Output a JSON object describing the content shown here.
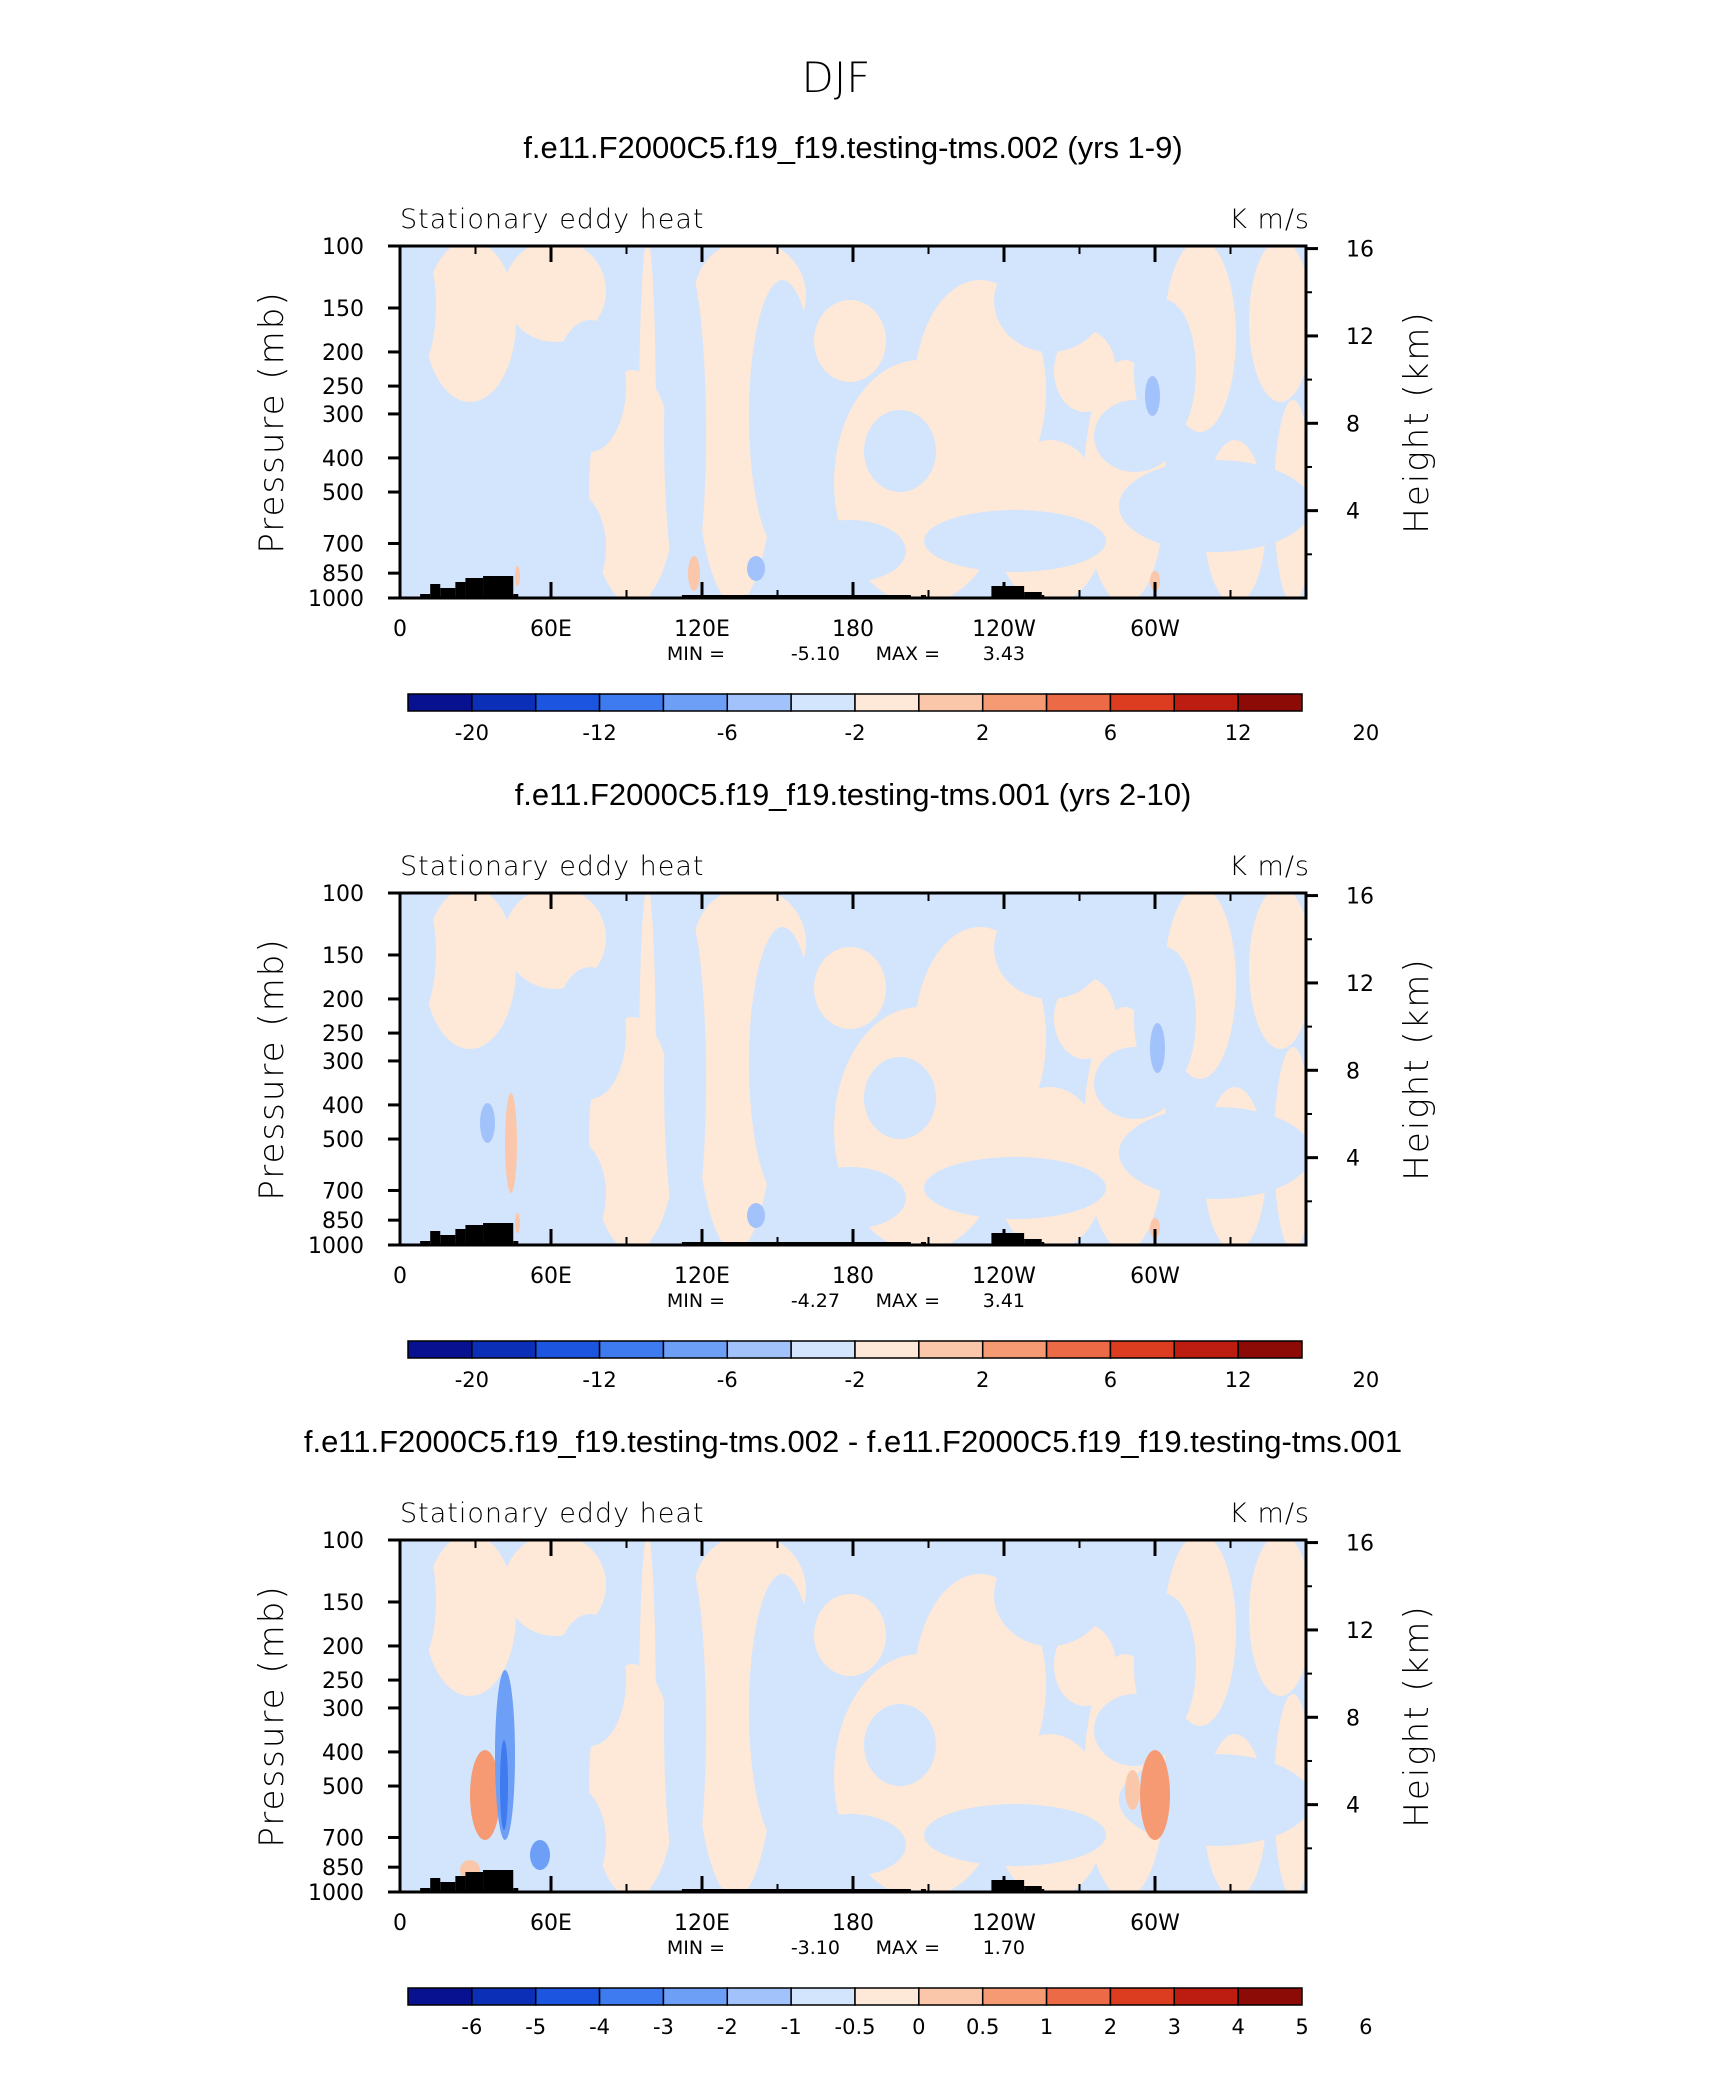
{
  "title": "DJF",
  "palette": [
    "#08118f",
    "#0c2fb8",
    "#1c56e0",
    "#3f7bf0",
    "#6e9ff6",
    "#a2c2fb",
    "#d2e5fd",
    "#fee8d8",
    "#fbc7aa",
    "#f59a73",
    "#ec6a45",
    "#dc3c1f",
    "#bc1d10",
    "#8c0b06"
  ],
  "panels": [
    {
      "case_title": "f.e11.F2000C5.f19_f19.testing-tms.002 (yrs 1-9)",
      "left_label": "Stationary eddy heat",
      "right_label": "K m/s",
      "ylabel": "Pressure (mb)",
      "ylabel_right": "Height (km)",
      "min_label": "MIN =",
      "min_value": "-5.10",
      "max_label": "MAX =",
      "max_value": "3.43",
      "colorbar_labels": [
        "-20",
        "-12",
        "-6",
        "-2",
        "2",
        "6",
        "12",
        "20"
      ],
      "colorbar_values": [
        -20,
        -12,
        -6,
        -2,
        2,
        6,
        12,
        20
      ],
      "colorbar_positions": [
        1,
        3,
        5,
        7,
        9,
        11,
        13,
        15
      ]
    },
    {
      "case_title": "f.e11.F2000C5.f19_f19.testing-tms.001 (yrs 2-10)",
      "left_label": "Stationary eddy heat",
      "right_label": "K m/s",
      "ylabel": "Pressure (mb)",
      "ylabel_right": "Height (km)",
      "min_label": "MIN =",
      "min_value": "-4.27",
      "max_label": "MAX =",
      "max_value": "3.41",
      "colorbar_labels": [
        "-20",
        "-12",
        "-6",
        "-2",
        "2",
        "6",
        "12",
        "20"
      ],
      "colorbar_values": [
        -20,
        -12,
        -6,
        -2,
        2,
        6,
        12,
        20
      ],
      "colorbar_positions": [
        1,
        3,
        5,
        7,
        9,
        11,
        13,
        15
      ]
    },
    {
      "case_title": "f.e11.F2000C5.f19_f19.testing-tms.002 - f.e11.F2000C5.f19_f19.testing-tms.001",
      "left_label": "Stationary eddy heat",
      "right_label": "K m/s",
      "ylabel": "Pressure (mb)",
      "ylabel_right": "Height (km)",
      "min_label": "MIN =",
      "min_value": "-3.10",
      "max_label": "MAX =",
      "max_value": "1.70",
      "colorbar_labels": [
        "-6",
        "-5",
        "-4",
        "-3",
        "-2",
        "-1",
        "-0.5",
        "0",
        "0.5",
        "1",
        "2",
        "3",
        "4",
        "5",
        "6"
      ],
      "colorbar_values": [
        -6,
        -5,
        -4,
        -3,
        -2,
        -1,
        -0.5,
        0,
        0.5,
        1,
        2,
        3,
        4,
        5,
        6
      ],
      "colorbar_positions": [
        1,
        2,
        3,
        4,
        5,
        6,
        7,
        8,
        9,
        10,
        11,
        12,
        13,
        14,
        15
      ]
    }
  ],
  "chart_data": [
    {
      "type": "heatmap",
      "title": "f.e11.F2000C5.f19_f19.testing-tms.002 (yrs 1-9)",
      "variable": "Stationary eddy heat",
      "units": "K m/s",
      "xlabel": "",
      "ylabel": "Pressure (mb)",
      "ylabel_right": "Height (km)",
      "x_ticks": [
        "0",
        "60E",
        "120E",
        "180",
        "120W",
        "60W"
      ],
      "x_tick_values": [
        0,
        60,
        120,
        180,
        240,
        300
      ],
      "xlim": [
        0,
        360
      ],
      "y_ticks": [
        "100",
        "150",
        "200",
        "250",
        "300",
        "400",
        "500",
        "700",
        "850",
        "1000"
      ],
      "y_tick_values": [
        100,
        150,
        200,
        250,
        300,
        400,
        500,
        700,
        850,
        1000
      ],
      "ylim": [
        1000,
        100
      ],
      "y_scale": "log",
      "y_right_ticks": [
        "16",
        "12",
        "8",
        "4"
      ],
      "y_right_tick_values": [
        16,
        12,
        8,
        4
      ],
      "min": -5.1,
      "max": 3.43,
      "contour_levels": [
        -20,
        -16,
        -12,
        -8,
        -6,
        -4,
        -2,
        0,
        2,
        4,
        6,
        8,
        12,
        16,
        20
      ]
    },
    {
      "type": "heatmap",
      "title": "f.e11.F2000C5.f19_f19.testing-tms.001 (yrs 2-10)",
      "variable": "Stationary eddy heat",
      "units": "K m/s",
      "xlabel": "",
      "ylabel": "Pressure (mb)",
      "ylabel_right": "Height (km)",
      "x_ticks": [
        "0",
        "60E",
        "120E",
        "180",
        "120W",
        "60W"
      ],
      "x_tick_values": [
        0,
        60,
        120,
        180,
        240,
        300
      ],
      "xlim": [
        0,
        360
      ],
      "y_ticks": [
        "100",
        "150",
        "200",
        "250",
        "300",
        "400",
        "500",
        "700",
        "850",
        "1000"
      ],
      "y_tick_values": [
        100,
        150,
        200,
        250,
        300,
        400,
        500,
        700,
        850,
        1000
      ],
      "ylim": [
        1000,
        100
      ],
      "y_scale": "log",
      "y_right_ticks": [
        "16",
        "12",
        "8",
        "4"
      ],
      "y_right_tick_values": [
        16,
        12,
        8,
        4
      ],
      "min": -4.27,
      "max": 3.41,
      "contour_levels": [
        -20,
        -16,
        -12,
        -8,
        -6,
        -4,
        -2,
        0,
        2,
        4,
        6,
        8,
        12,
        16,
        20
      ]
    },
    {
      "type": "heatmap",
      "title": "f.e11.F2000C5.f19_f19.testing-tms.002 - f.e11.F2000C5.f19_f19.testing-tms.001",
      "variable": "Stationary eddy heat",
      "units": "K m/s",
      "xlabel": "",
      "ylabel": "Pressure (mb)",
      "ylabel_right": "Height (km)",
      "x_ticks": [
        "0",
        "60E",
        "120E",
        "180",
        "120W",
        "60W"
      ],
      "x_tick_values": [
        0,
        60,
        120,
        180,
        240,
        300
      ],
      "xlim": [
        0,
        360
      ],
      "y_ticks": [
        "100",
        "150",
        "200",
        "250",
        "300",
        "400",
        "500",
        "700",
        "850",
        "1000"
      ],
      "y_tick_values": [
        100,
        150,
        200,
        250,
        300,
        400,
        500,
        700,
        850,
        1000
      ],
      "ylim": [
        1000,
        100
      ],
      "y_scale": "log",
      "y_right_ticks": [
        "16",
        "12",
        "8",
        "4"
      ],
      "y_right_tick_values": [
        16,
        12,
        8,
        4
      ],
      "min": -3.1,
      "max": 1.7,
      "contour_levels": [
        -6,
        -5,
        -4,
        -3,
        -2,
        -1,
        -0.5,
        0,
        0.5,
        1,
        2,
        3,
        4,
        5,
        6
      ]
    }
  ]
}
